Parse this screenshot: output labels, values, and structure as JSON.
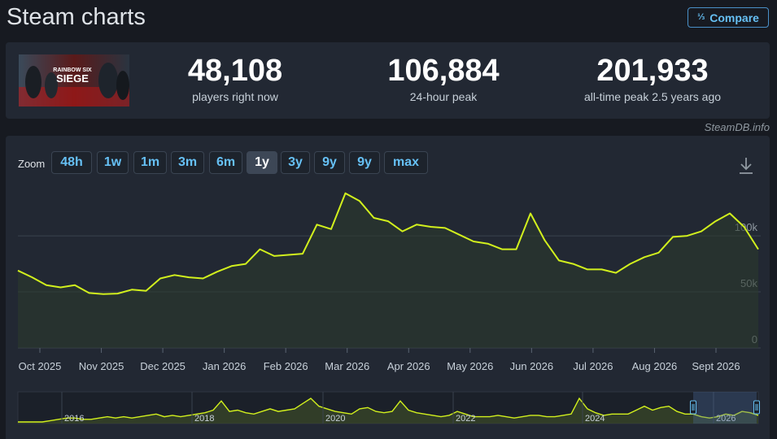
{
  "header": {
    "title": "Steam charts",
    "compare_label": "Compare",
    "compare_icon": "1/2/3"
  },
  "stats": {
    "game_art_text": "RAINBOW SIX SIEGE",
    "current": {
      "value": "48,108",
      "label": "players right now"
    },
    "peak24": {
      "value": "106,884",
      "label": "24-hour peak"
    },
    "alltime": {
      "value": "201,933",
      "label": "all-time peak 2.5 years ago"
    }
  },
  "watermark": "SteamDB.info",
  "zoom": {
    "label": "Zoom",
    "options": [
      "48h",
      "1w",
      "1m",
      "3m",
      "6m",
      "1y",
      "3y",
      "9y",
      "max"
    ],
    "selected": "1y"
  },
  "colors": {
    "line": "#d2f01d",
    "fill": "#2c3a2c",
    "grid": "#3a424e",
    "accent": "#66c0f4"
  },
  "chart_data": [
    {
      "type": "line",
      "y_ticks": [
        "0",
        "50k",
        "100k"
      ],
      "y_tick_values": [
        0,
        50000,
        100000
      ],
      "ylim": [
        0,
        145000
      ],
      "x_labels": [
        "Oct 2025",
        "Nov 2025",
        "Dec 2025",
        "Jan 2026",
        "Feb 2026",
        "Mar 2026",
        "Apr 2026",
        "May 2026",
        "Jun 2026",
        "Jul 2026",
        "Aug 2026",
        "Sept 2026"
      ],
      "grid": true,
      "series": [
        {
          "values": [
            69000,
            63000,
            56000,
            54000,
            56000,
            49000,
            48000,
            48500,
            52000,
            51000,
            62000,
            65000,
            63000,
            62000,
            68000,
            73000,
            75000,
            88000,
            82000,
            83000,
            84000,
            110000,
            106000,
            138000,
            131000,
            116000,
            113000,
            104000,
            110000,
            108000,
            107000,
            101000,
            95000,
            93000,
            88000,
            88000,
            120000,
            96000,
            78000,
            75000,
            70000,
            70000,
            67000,
            75000,
            81000,
            85000,
            99000,
            100000,
            104000,
            113000,
            120000,
            108000,
            88000
          ]
        }
      ]
    },
    {
      "type": "area",
      "x_labels": [
        "2016",
        "2018",
        "2020",
        "2022",
        "2024",
        "2026"
      ],
      "selection": "last 1y",
      "series": [
        {
          "values": [
            0,
            0,
            0,
            0,
            1,
            2,
            3,
            3,
            2,
            2,
            3,
            4,
            3,
            4,
            3,
            4,
            5,
            6,
            4,
            5,
            4,
            5,
            6,
            7,
            9,
            16,
            8,
            9,
            7,
            6,
            8,
            10,
            8,
            9,
            10,
            14,
            18,
            12,
            10,
            8,
            7,
            6,
            10,
            11,
            8,
            7,
            8,
            16,
            9,
            7,
            6,
            5,
            4,
            5,
            8,
            6,
            4,
            4,
            4,
            5,
            4,
            3,
            4,
            5,
            5,
            4,
            4,
            5,
            6,
            18,
            10,
            7,
            5,
            6,
            6,
            6,
            9,
            12,
            9,
            11,
            12,
            8,
            6,
            6,
            4,
            3,
            4,
            6,
            5,
            8,
            7,
            5
          ]
        }
      ]
    }
  ]
}
